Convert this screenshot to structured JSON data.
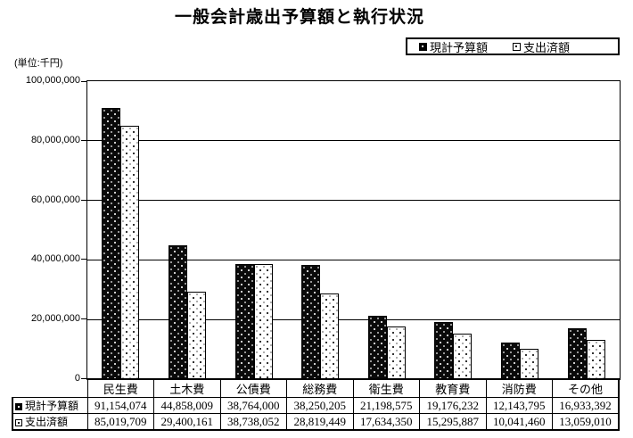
{
  "title": "一般会計歳出予算額と執行状況",
  "unit_label": "(単位:千円)",
  "legend": {
    "items": [
      {
        "label": "現計予算額",
        "swatch": "black-dotted-square"
      },
      {
        "label": "支出済額",
        "swatch": "white-dotted-square"
      }
    ]
  },
  "chart_data": {
    "type": "bar",
    "title": "一般会計歳出予算額と執行状況",
    "ylabel": "(単位:千円)",
    "categories": [
      "民生費",
      "土木費",
      "公債費",
      "総務費",
      "衛生費",
      "教育費",
      "消防費",
      "その他"
    ],
    "series": [
      {
        "name": "現計予算額",
        "pattern": "black-with-white-dots",
        "values": [
          91154074,
          44858009,
          38764000,
          38250205,
          21198575,
          19176232,
          12143795,
          16933392
        ]
      },
      {
        "name": "支出済額",
        "pattern": "white-with-black-dots",
        "values": [
          85019709,
          29400161,
          38738052,
          28819449,
          17634350,
          15295887,
          10041460,
          13059010
        ]
      }
    ],
    "ylim": [
      0,
      100000000
    ],
    "ytick_interval": 20000000,
    "ytick_labels": [
      "0",
      "20,000,000",
      "40,000,000",
      "60,000,000",
      "80,000,000",
      "100,000,000"
    ],
    "grid": true,
    "legend_position": "top-right",
    "bar_color_fg": "#000000",
    "bar_color_bg": "#ffffff"
  },
  "table": {
    "columns": [
      "民生費",
      "土木費",
      "公債費",
      "総務費",
      "衛生費",
      "教育費",
      "消防費",
      "その他"
    ],
    "rows": [
      {
        "label": "現計予算額",
        "values": [
          "91,154,074",
          "44,858,009",
          "38,764,000",
          "38,250,205",
          "21,198,575",
          "19,176,232",
          "12,143,795",
          "16,933,392"
        ]
      },
      {
        "label": "支出済額",
        "values": [
          "85,019,709",
          "29,400,161",
          "38,738,052",
          "28,819,449",
          "17,634,350",
          "15,295,887",
          "10,041,460",
          "13,059,010"
        ]
      }
    ]
  }
}
